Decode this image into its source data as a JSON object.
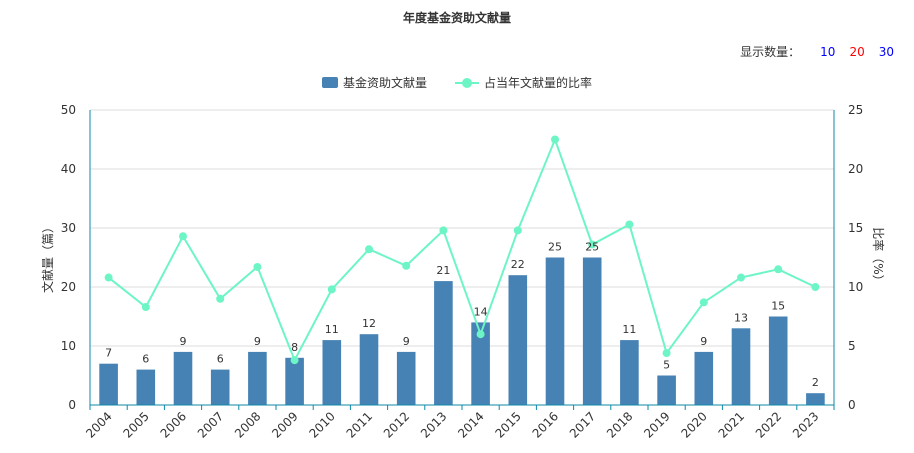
{
  "title": "年度基金资助文献量",
  "count_selector": {
    "label": "显示数量：",
    "options": [
      {
        "label": "10",
        "color": "#0000ff"
      },
      {
        "label": "20",
        "color": "#ff0000"
      },
      {
        "label": "30",
        "color": "#0000ff"
      }
    ]
  },
  "legend": [
    {
      "label": "基金资助文献量",
      "color": "#4682b4",
      "kind": "bar"
    },
    {
      "label": "占当年文献量的比率",
      "color": "#6df5c6",
      "kind": "line"
    }
  ],
  "chart_data": {
    "type": "bar",
    "categories": [
      "2004",
      "2005",
      "2006",
      "2007",
      "2008",
      "2009",
      "2010",
      "2011",
      "2012",
      "2013",
      "2014",
      "2015",
      "2016",
      "2017",
      "2018",
      "2019",
      "2020",
      "2021",
      "2022",
      "2023"
    ],
    "series": [
      {
        "name": "基金资助文献量",
        "type": "bar",
        "axis": "left",
        "values": [
          7,
          6,
          9,
          6,
          9,
          8,
          11,
          12,
          9,
          21,
          14,
          22,
          25,
          25,
          11,
          5,
          9,
          13,
          15,
          2
        ]
      },
      {
        "name": "占当年文献量的比率",
        "type": "line",
        "axis": "right",
        "values": [
          10.8,
          8.3,
          14.3,
          9.0,
          11.7,
          3.8,
          9.8,
          13.2,
          11.8,
          14.8,
          6.0,
          14.8,
          22.5,
          13.6,
          15.3,
          4.4,
          8.7,
          10.8,
          11.5,
          10.0
        ]
      }
    ],
    "ylabel": "文献量（篇）",
    "y2label": "比率（%）",
    "ylim": [
      0,
      50
    ],
    "y2lim": [
      0,
      25
    ],
    "yticks": [
      "0",
      "10",
      "20",
      "30",
      "40",
      "50"
    ],
    "y2ticks": [
      "0",
      "5",
      "10",
      "15",
      "20",
      "25"
    ],
    "grid": true,
    "legend_position": "top-center",
    "data_labels": true,
    "bar_color": "#4682b4",
    "line_color": "#6df5c6",
    "axis_color": "#0e89a8"
  }
}
